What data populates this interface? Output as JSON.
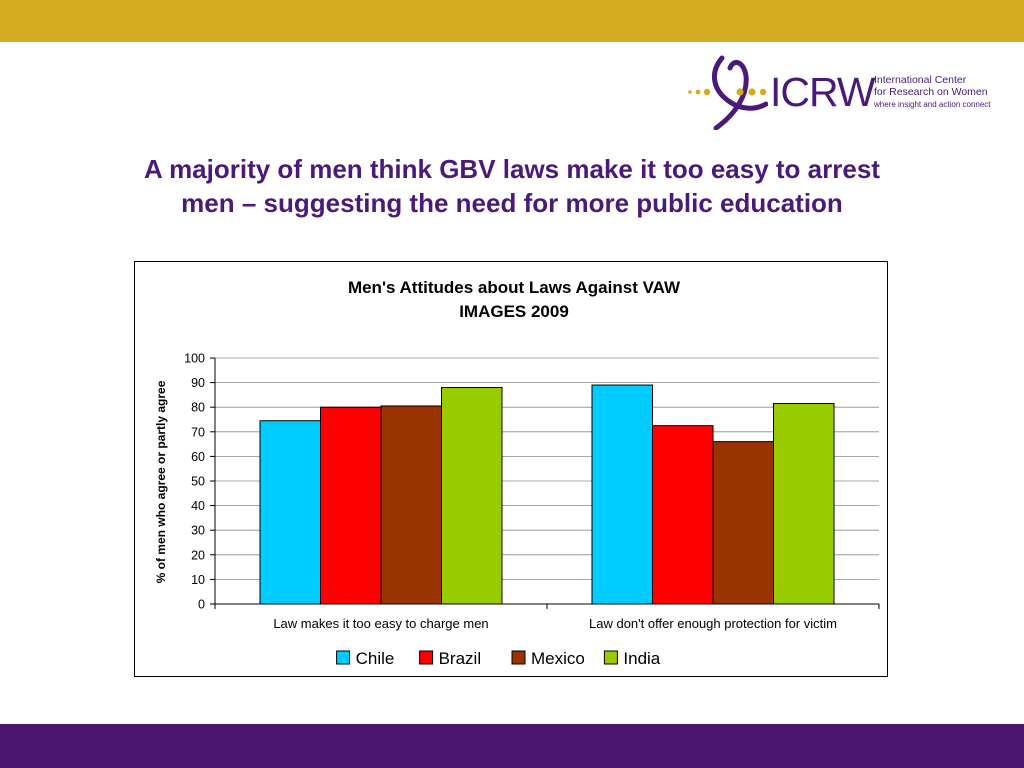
{
  "header": {
    "accent_color": "#d4ac22"
  },
  "logo": {
    "wordmark": "ICRW",
    "line1": "International Center",
    "line2": "for Research on Women",
    "tagline": "where insight and action connect",
    "color": "#4a1a7a"
  },
  "slide": {
    "title_line1": "A majority of men think GBV laws make it too easy to arrest",
    "title_line2": "men – suggesting the need for more public education"
  },
  "footer": {
    "color": "#4a156c"
  },
  "chart_data": {
    "type": "bar",
    "title": "Men's Attitudes about Laws Against VAW",
    "subtitle": "IMAGES 2009",
    "xlabel": "",
    "ylabel": "% of men who agree or partly agree",
    "ylim": [
      0,
      100
    ],
    "yticks": [
      0,
      10,
      20,
      30,
      40,
      50,
      60,
      70,
      80,
      90,
      100
    ],
    "grid": true,
    "legend_position": "bottom",
    "categories": [
      "Law makes it too easy to charge men",
      "Law don't offer enough protection for victim"
    ],
    "series": [
      {
        "name": "Chile",
        "color": "#00ccff",
        "values": [
          74.5,
          89
        ]
      },
      {
        "name": "Brazil",
        "color": "#ff0000",
        "values": [
          80,
          72.5
        ]
      },
      {
        "name": "Mexico",
        "color": "#993300",
        "values": [
          80.5,
          66
        ]
      },
      {
        "name": "India",
        "color": "#99cc00",
        "values": [
          88,
          81.5
        ]
      }
    ]
  }
}
